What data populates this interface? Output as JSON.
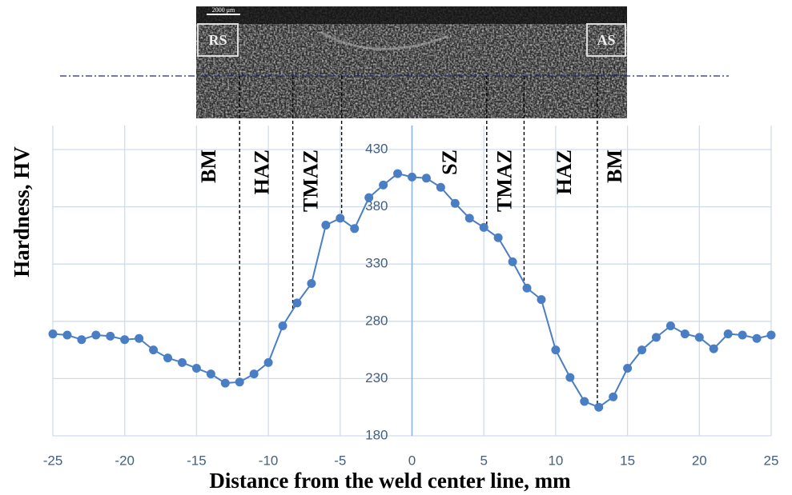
{
  "chart_data": {
    "type": "line",
    "xlabel": "Distance from the weld center line, mm",
    "ylabel": "Hardness, HV",
    "x": [
      -25,
      -24,
      -23,
      -22,
      -21,
      -20,
      -19,
      -18,
      -17,
      -16,
      -15,
      -14,
      -13,
      -12,
      -11,
      -10,
      -9,
      -8,
      -7,
      -6,
      -5,
      -4,
      -3,
      -2,
      -1,
      0,
      1,
      2,
      3,
      4,
      5,
      6,
      7,
      8,
      9,
      10,
      11,
      12,
      13,
      14,
      15,
      16,
      17,
      18,
      19,
      20,
      21,
      22,
      23,
      24,
      25
    ],
    "series": [
      {
        "color": "#4a7ec4",
        "values": [
          269,
          268,
          264,
          268,
          267,
          264,
          265,
          255,
          248,
          244,
          239,
          234,
          226,
          227,
          234,
          244,
          276,
          296,
          313,
          364,
          370,
          361,
          388,
          399,
          409,
          406,
          405,
          397,
          383,
          370,
          362,
          353,
          332,
          309,
          299,
          255,
          231,
          210,
          205,
          214,
          239,
          255,
          266,
          276,
          269,
          266,
          256,
          269,
          268,
          265,
          268
        ]
      }
    ],
    "xlim": [
      -25,
      25
    ],
    "xticks": [
      -25,
      -20,
      -15,
      -10,
      -5,
      0,
      5,
      10,
      15,
      20,
      25
    ],
    "ylim": [
      180,
      430
    ],
    "yticks": [
      180,
      230,
      280,
      330,
      380,
      430
    ],
    "grid": true,
    "zone_boundaries": [
      -12,
      -8.3,
      -4.9,
      5.2,
      7.8,
      12.9
    ],
    "zone_labels": [
      "BM",
      "HAZ",
      "TMAZ",
      "SZ",
      "TMAZ",
      "HAZ",
      "BM"
    ],
    "inset_labels": [
      "RS",
      "AS",
      "2000 μm"
    ]
  }
}
